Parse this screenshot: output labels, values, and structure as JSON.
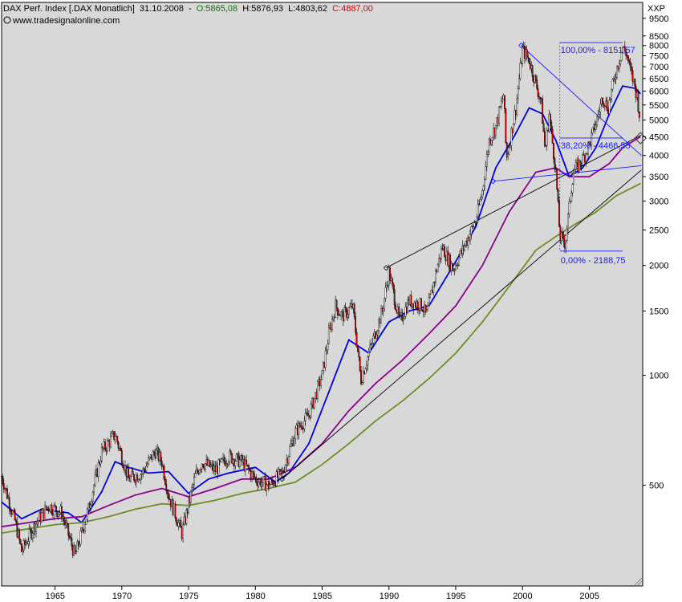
{
  "header": {
    "name": "DAX Perf. Index [.DAX  Monatlich]",
    "date": "31.10.2008",
    "open_label": "O:",
    "open": "5865,08",
    "high_label": "H:",
    "high": "5876,93",
    "low_label": "L:",
    "low": "4803,62",
    "close_label": "C:",
    "close": "4887,00",
    "website": "www.tradesignalonline.com"
  },
  "colors": {
    "panel_bg": "#d8d8d8",
    "up_candle": "#ffffff",
    "down_candle": "#cc0000",
    "ma_short": "#0000dd",
    "ma_mid": "#8b008b",
    "ma_long": "#6b8e23",
    "fib": "#1a1aff",
    "open_green": "#008000",
    "close_red": "#dd0000"
  },
  "chart_data": {
    "type": "candlestick",
    "interval": "monthly",
    "scale": "log",
    "ylim": [
      265,
      10500
    ],
    "xlim": [
      1961.0,
      2009.0
    ],
    "y_axis_label": "XXP",
    "y_ticks": [
      500,
      1000,
      1500,
      2000,
      2500,
      3000,
      3500,
      4000,
      4500,
      5000,
      5500,
      6000,
      6500,
      7000,
      7500,
      8000,
      8500,
      9500
    ],
    "x_ticks": [
      1965,
      1970,
      1975,
      1980,
      1985,
      1990,
      1995,
      2000,
      2005
    ],
    "price_path": [
      [
        1961.0,
        530
      ],
      [
        1962.0,
        400
      ],
      [
        1962.5,
        330
      ],
      [
        1963.5,
        390
      ],
      [
        1964.5,
        440
      ],
      [
        1965.5,
        420
      ],
      [
        1966.5,
        320
      ],
      [
        1967.5,
        430
      ],
      [
        1968.5,
        620
      ],
      [
        1969.5,
        690
      ],
      [
        1970.5,
        520
      ],
      [
        1971.5,
        540
      ],
      [
        1972.5,
        620
      ],
      [
        1973.0,
        580
      ],
      [
        1973.5,
        470
      ],
      [
        1974.5,
        370
      ],
      [
        1975.5,
        530
      ],
      [
        1976.0,
        580
      ],
      [
        1977.0,
        550
      ],
      [
        1978.0,
        600
      ],
      [
        1979.0,
        580
      ],
      [
        1980.0,
        520
      ],
      [
        1981.0,
        500
      ],
      [
        1982.0,
        540
      ],
      [
        1983.0,
        700
      ],
      [
        1984.0,
        780
      ],
      [
        1985.0,
        1000
      ],
      [
        1985.5,
        1300
      ],
      [
        1986.0,
        1550
      ],
      [
        1986.5,
        1450
      ],
      [
        1987.3,
        1550
      ],
      [
        1987.9,
        970
      ],
      [
        1988.5,
        1150
      ],
      [
        1989.5,
        1500
      ],
      [
        1990.0,
        1920
      ],
      [
        1990.8,
        1400
      ],
      [
        1991.5,
        1600
      ],
      [
        1992.5,
        1550
      ],
      [
        1992.8,
        1450
      ],
      [
        1993.5,
        1900
      ],
      [
        1994.0,
        2250
      ],
      [
        1994.8,
        1950
      ],
      [
        1995.5,
        2200
      ],
      [
        1996.5,
        2650
      ],
      [
        1997.0,
        3200
      ],
      [
        1997.5,
        4400
      ],
      [
        1998.0,
        4800
      ],
      [
        1998.6,
        5900
      ],
      [
        1998.8,
        3900
      ],
      [
        1999.5,
        5400
      ],
      [
        2000.0,
        7800
      ],
      [
        2000.5,
        7300
      ],
      [
        2001.0,
        6300
      ],
      [
        2001.4,
        5600
      ],
      [
        2001.7,
        4100
      ],
      [
        2002.0,
        5200
      ],
      [
        2002.5,
        3600
      ],
      [
        2002.8,
        2400
      ],
      [
        2003.2,
        2300
      ],
      [
        2003.8,
        3600
      ],
      [
        2004.5,
        3900
      ],
      [
        2005.0,
        4300
      ],
      [
        2005.5,
        4900
      ],
      [
        2006.0,
        5800
      ],
      [
        2006.4,
        5400
      ],
      [
        2007.0,
        6800
      ],
      [
        2007.5,
        7900
      ],
      [
        2007.8,
        7600
      ],
      [
        2008.0,
        7000
      ],
      [
        2008.3,
        6400
      ],
      [
        2008.6,
        5800
      ],
      [
        2008.83,
        4887
      ]
    ],
    "moving_averages": [
      {
        "color": "#0000dd",
        "points": [
          [
            1961.0,
            450
          ],
          [
            1962.5,
            405
          ],
          [
            1964.0,
            430
          ],
          [
            1966.0,
            420
          ],
          [
            1967.0,
            395
          ],
          [
            1968.5,
            480
          ],
          [
            1969.5,
            580
          ],
          [
            1970.5,
            560
          ],
          [
            1972.0,
            540
          ],
          [
            1973.5,
            545
          ],
          [
            1975.0,
            475
          ],
          [
            1976.5,
            520
          ],
          [
            1978.0,
            540
          ],
          [
            1980.0,
            560
          ],
          [
            1981.5,
            510
          ],
          [
            1982.5,
            540
          ],
          [
            1984.0,
            650
          ],
          [
            1985.5,
            900
          ],
          [
            1987.0,
            1250
          ],
          [
            1988.5,
            1150
          ],
          [
            1990.0,
            1400
          ],
          [
            1991.5,
            1500
          ],
          [
            1993.0,
            1550
          ],
          [
            1995.0,
            2050
          ],
          [
            1996.5,
            2550
          ],
          [
            1998.0,
            3700
          ],
          [
            1999.5,
            4600
          ],
          [
            2000.5,
            5400
          ],
          [
            2001.5,
            5200
          ],
          [
            2002.5,
            4400
          ],
          [
            2003.5,
            3500
          ],
          [
            2004.5,
            3700
          ],
          [
            2005.5,
            4200
          ],
          [
            2006.5,
            5200
          ],
          [
            2007.5,
            6200
          ],
          [
            2008.5,
            6100
          ],
          [
            2008.83,
            5900
          ]
        ]
      },
      {
        "color": "#8b008b",
        "points": [
          [
            1961.0,
            385
          ],
          [
            1963.0,
            395
          ],
          [
            1965.0,
            405
          ],
          [
            1967.0,
            410
          ],
          [
            1969.0,
            440
          ],
          [
            1971.0,
            470
          ],
          [
            1973.0,
            490
          ],
          [
            1975.0,
            465
          ],
          [
            1977.0,
            490
          ],
          [
            1979.0,
            520
          ],
          [
            1981.0,
            520
          ],
          [
            1983.0,
            560
          ],
          [
            1985.0,
            650
          ],
          [
            1987.0,
            800
          ],
          [
            1989.0,
            950
          ],
          [
            1991.0,
            1100
          ],
          [
            1993.0,
            1300
          ],
          [
            1995.0,
            1550
          ],
          [
            1997.0,
            2000
          ],
          [
            1999.0,
            2800
          ],
          [
            2001.0,
            3600
          ],
          [
            2002.5,
            3700
          ],
          [
            2003.5,
            3500
          ],
          [
            2005.0,
            3500
          ],
          [
            2006.5,
            3800
          ],
          [
            2007.5,
            4200
          ],
          [
            2008.83,
            4500
          ]
        ]
      },
      {
        "color": "#6b8e23",
        "points": [
          [
            1961.0,
            370
          ],
          [
            1963.0,
            380
          ],
          [
            1965.0,
            390
          ],
          [
            1967.0,
            395
          ],
          [
            1969.0,
            410
          ],
          [
            1971.0,
            430
          ],
          [
            1973.0,
            445
          ],
          [
            1975.0,
            440
          ],
          [
            1977.0,
            455
          ],
          [
            1979.0,
            475
          ],
          [
            1981.0,
            490
          ],
          [
            1983.0,
            510
          ],
          [
            1985.0,
            570
          ],
          [
            1987.0,
            650
          ],
          [
            1989.0,
            750
          ],
          [
            1991.0,
            850
          ],
          [
            1993.0,
            980
          ],
          [
            1995.0,
            1150
          ],
          [
            1997.0,
            1400
          ],
          [
            1999.0,
            1750
          ],
          [
            2001.0,
            2200
          ],
          [
            2002.5,
            2400
          ],
          [
            2004.0,
            2600
          ],
          [
            2005.5,
            2800
          ],
          [
            2007.0,
            3100
          ],
          [
            2008.83,
            3350
          ]
        ]
      }
    ],
    "trendlines": [
      {
        "color": "#000000",
        "points": [
          [
            1989.8,
            1970
          ],
          [
            2008.9,
            4550
          ]
        ]
      },
      {
        "color": "#000000",
        "points": [
          [
            1982.0,
            520
          ],
          [
            2008.9,
            3650
          ]
        ]
      },
      {
        "color": "#1a1aff",
        "points": [
          [
            1999.9,
            8000
          ],
          [
            2008.9,
            4000
          ]
        ]
      },
      {
        "color": "#1a1aff",
        "points": [
          [
            1997.8,
            3400
          ],
          [
            2008.9,
            3750
          ]
        ]
      }
    ],
    "fibonacci": {
      "x_start": 2002.8,
      "x_end": 2007.5,
      "levels": [
        {
          "label": "100,00% - 8151,57",
          "value": 8151.57
        },
        {
          "label": "38,20% - 4466,55",
          "value": 4466.55
        },
        {
          "label": "0,00% - 2188,75",
          "value": 2188.75
        }
      ]
    }
  }
}
